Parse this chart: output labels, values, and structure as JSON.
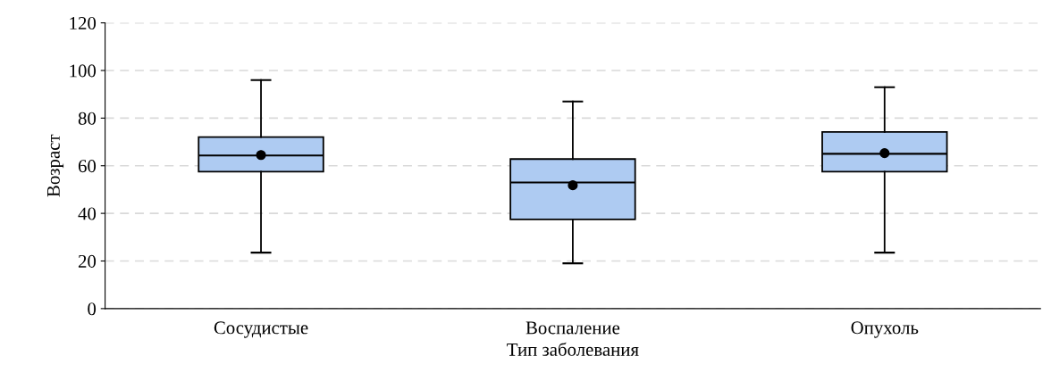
{
  "chart_data": {
    "type": "box",
    "xlabel": "Тип заболевания",
    "ylabel": "Возраст",
    "categories": [
      "Сосудистые",
      "Воспаление",
      "Опухоль"
    ],
    "boxes": [
      {
        "low": 23.5,
        "q1": 57.5,
        "median": 64.3,
        "q3": 72,
        "high": 96,
        "mean": 64.5
      },
      {
        "low": 19,
        "q1": 37.5,
        "median": 53,
        "q3": 62.8,
        "high": 87,
        "mean": 51.8
      },
      {
        "low": 23.5,
        "q1": 57.5,
        "median": 65,
        "q3": 74.2,
        "high": 93,
        "mean": 65.3
      }
    ],
    "color": "#aecbf2",
    "ylim": [
      0,
      120
    ],
    "yticks": [
      0,
      20,
      40,
      60,
      80,
      100,
      120
    ],
    "grid": "y",
    "marker": "circle"
  }
}
